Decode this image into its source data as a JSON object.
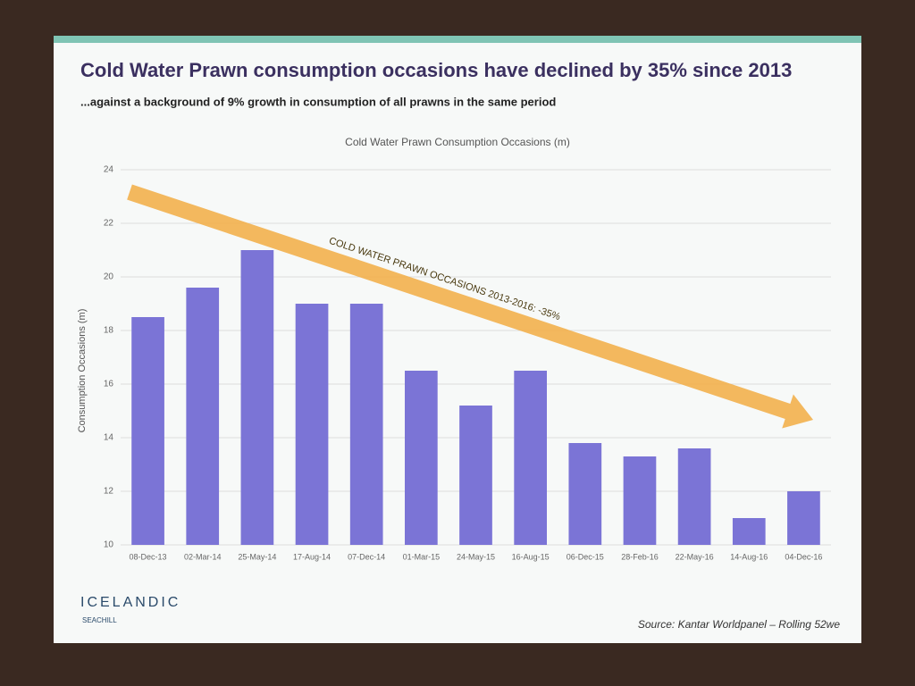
{
  "slide": {
    "title": "Cold Water Prawn consumption occasions have declined by 35% since 2013",
    "subtitle": "...against a background of 9% growth in consumption of all prawns in the same period",
    "source": "Source: Kantar Worldpanel – Rolling 52we",
    "logo": "ICELANDIC",
    "logo_sub": "SEACHILL"
  },
  "chart_data": {
    "type": "bar",
    "title": "Cold Water Prawn Consumption Occasions (m)",
    "y_label": "Consumption Occasions (m)",
    "annotation": "COLD WATER PRAWN OCCASIONS 2013-2016: -35%",
    "categories": [
      "08-Dec-13",
      "02-Mar-14",
      "25-May-14",
      "17-Aug-14",
      "07-Dec-14",
      "01-Mar-15",
      "24-May-15",
      "16-Aug-15",
      "06-Dec-15",
      "28-Feb-16",
      "22-May-16",
      "14-Aug-16",
      "04-Dec-16"
    ],
    "values": [
      18.5,
      19.6,
      21,
      19,
      19,
      16.5,
      15.2,
      16.5,
      13.8,
      13.3,
      13.6,
      11,
      12
    ],
    "color": "#7b74d6",
    "ylim": [
      10,
      24
    ],
    "yticks": [
      10,
      12,
      14,
      16,
      18,
      20,
      22,
      24
    ],
    "grid": true
  }
}
